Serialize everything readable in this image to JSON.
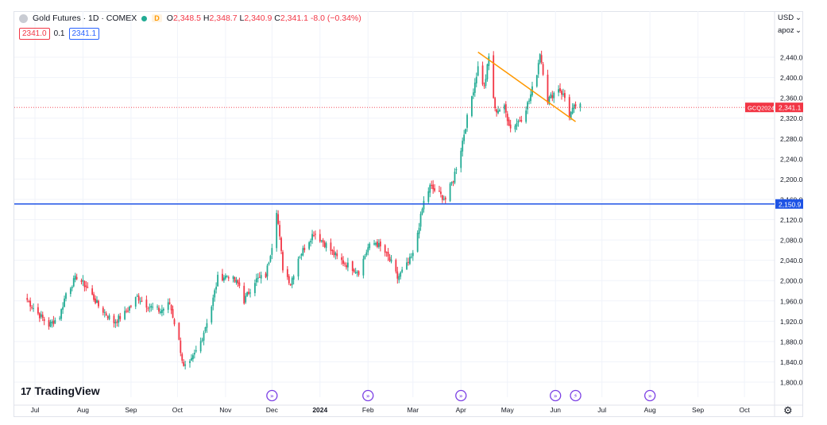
{
  "legend": {
    "title": "Gold Futures · 1D · COMEX",
    "delay_badge": "D",
    "open_key": "O",
    "open": "2,348.5",
    "high_key": "H",
    "high": "2,348.7",
    "low_key": "L",
    "low": "2,340.9",
    "close_key": "C",
    "close": "2,341.1",
    "change": "-8.0 (−0.34%)"
  },
  "quote": {
    "bid": "2341.0",
    "spread": "0.1",
    "ask": "2341.1"
  },
  "currency_label": "USD",
  "scale_label": "apoz",
  "logo_text": "TradingView",
  "colors": {
    "up": "#22ab94",
    "down": "#f23645",
    "hline": "#1e53e5",
    "trend": "#ff9800",
    "last_line": "#f23645"
  },
  "chart_data": {
    "type": "candlestick",
    "title": "Gold Futures · 1D · COMEX",
    "symbol": "GCQ2024",
    "y_ticks": [
      1800,
      1840,
      1880,
      1920,
      1960,
      2000,
      2040,
      2080,
      2120,
      2160,
      2200,
      2240,
      2280,
      2320,
      2360,
      2400,
      2440
    ],
    "y_tick_labels": [
      "1,800.0",
      "1,840.0",
      "1,880.0",
      "1,920.0",
      "1,960.0",
      "2,000.0",
      "2,040.0",
      "2,080.0",
      "2,120.0",
      "2,160.0",
      "2,200.0",
      "2,240.0",
      "2,280.0",
      "2,320.0",
      "2,360.0",
      "2,400.0",
      "2,440.0"
    ],
    "ylim": [
      1782,
      2510
    ],
    "x_labels": [
      "Jul",
      "Aug",
      "Sep",
      "Oct",
      "Nov",
      "Dec",
      "2024",
      "Feb",
      "Mar",
      "Apr",
      "May",
      "Jun",
      "Jul",
      "Aug",
      "Sep",
      "Oct"
    ],
    "x_label_bold": "2024",
    "horizontal_line": {
      "value": 2150.9,
      "label": "2,150.9"
    },
    "last_price": {
      "value": 2341.1,
      "label": "2,341.1",
      "symbol": "GCQ2024"
    },
    "trend_line": {
      "from": [
        "2024-04-12",
        2450
      ],
      "to": [
        "2024-06-14",
        2313
      ]
    },
    "event_markers": [
      "2023-12-01",
      "2024-02-01",
      "2024-04-01",
      "2024-06-01",
      "2024-06-14",
      "2024-08-01"
    ],
    "price_path": [
      [
        "2023-06-26",
        1962
      ],
      [
        "2023-07-03",
        1935
      ],
      [
        "2023-07-10",
        1912
      ],
      [
        "2023-07-17",
        1930
      ],
      [
        "2023-07-21",
        1975
      ],
      [
        "2023-07-28",
        2008
      ],
      [
        "2023-08-04",
        1985
      ],
      [
        "2023-08-11",
        1950
      ],
      [
        "2023-08-21",
        1918
      ],
      [
        "2023-08-28",
        1935
      ],
      [
        "2023-09-05",
        1968
      ],
      [
        "2023-09-12",
        1950
      ],
      [
        "2023-09-20",
        1940
      ],
      [
        "2023-09-26",
        1955
      ],
      [
        "2023-10-02",
        1880
      ],
      [
        "2023-10-05",
        1828
      ],
      [
        "2023-10-09",
        1835
      ],
      [
        "2023-10-16",
        1880
      ],
      [
        "2023-10-23",
        1950
      ],
      [
        "2023-10-27",
        2005
      ],
      [
        "2023-11-03",
        2010
      ],
      [
        "2023-11-10",
        1990
      ],
      [
        "2023-11-13",
        1960
      ],
      [
        "2023-11-20",
        2000
      ],
      [
        "2023-11-27",
        2010
      ],
      [
        "2023-12-01",
        2070
      ],
      [
        "2023-12-04",
        2140
      ],
      [
        "2023-12-08",
        2025
      ],
      [
        "2023-12-13",
        1995
      ],
      [
        "2023-12-18",
        2045
      ],
      [
        "2023-12-28",
        2095
      ],
      [
        "2024-01-05",
        2070
      ],
      [
        "2024-01-12",
        2045
      ],
      [
        "2024-01-19",
        2030
      ],
      [
        "2024-01-26",
        2018
      ],
      [
        "2024-02-01",
        2065
      ],
      [
        "2024-02-06",
        2075
      ],
      [
        "2024-02-12",
        2055
      ],
      [
        "2024-02-16",
        2035
      ],
      [
        "2024-02-20",
        2005
      ],
      [
        "2024-02-26",
        2030
      ],
      [
        "2024-03-01",
        2050
      ],
      [
        "2024-03-05",
        2110
      ],
      [
        "2024-03-08",
        2155
      ],
      [
        "2024-03-12",
        2185
      ],
      [
        "2024-03-18",
        2170
      ],
      [
        "2024-03-22",
        2160
      ],
      [
        "2024-03-27",
        2200
      ],
      [
        "2024-04-01",
        2260
      ],
      [
        "2024-04-05",
        2320
      ],
      [
        "2024-04-12",
        2420
      ],
      [
        "2024-04-16",
        2380
      ],
      [
        "2024-04-19",
        2440
      ],
      [
        "2024-04-23",
        2335
      ],
      [
        "2024-04-29",
        2340
      ],
      [
        "2024-05-03",
        2300
      ],
      [
        "2024-05-10",
        2320
      ],
      [
        "2024-05-15",
        2355
      ],
      [
        "2024-05-20",
        2410
      ],
      [
        "2024-05-22",
        2450
      ],
      [
        "2024-05-27",
        2355
      ],
      [
        "2024-06-03",
        2380
      ],
      [
        "2024-06-07",
        2360
      ],
      [
        "2024-06-10",
        2325
      ],
      [
        "2024-06-14",
        2345
      ],
      [
        "2024-06-18",
        2341
      ]
    ]
  }
}
